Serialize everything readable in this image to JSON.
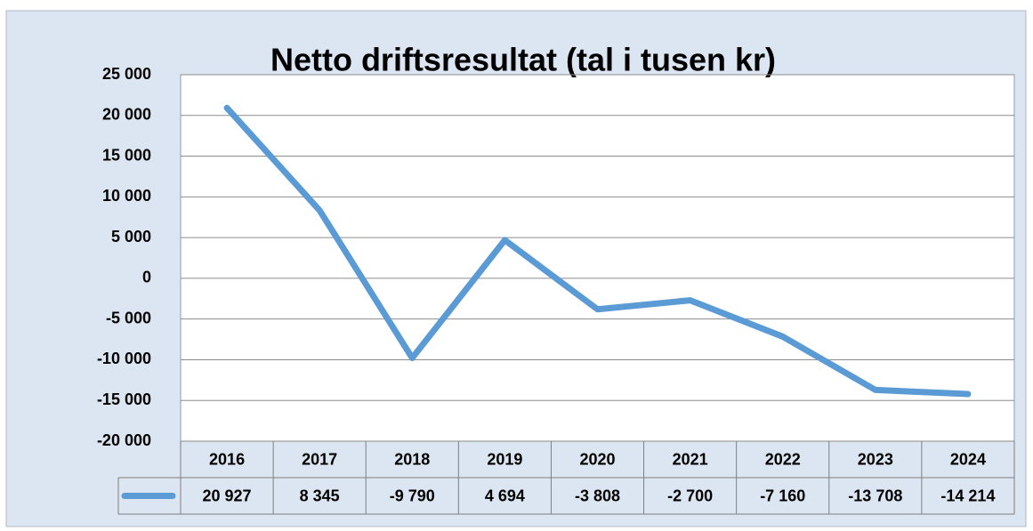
{
  "chart_data": {
    "type": "line",
    "title": "Netto driftsresultat (tal i tusen kr)",
    "categories": [
      "2016",
      "2017",
      "2018",
      "2019",
      "2020",
      "2021",
      "2022",
      "2023",
      "2024"
    ],
    "values": [
      20927,
      8345,
      -9790,
      4694,
      -3808,
      -2700,
      -7160,
      -13708,
      -14214
    ],
    "value_labels": [
      "20 927",
      "8 345",
      "-9 790",
      "4 694",
      "-3 808",
      "-2 700",
      "-7 160",
      "-13 708",
      "-14 214"
    ],
    "color": "#5b9bd5",
    "ylim": [
      -20000,
      25000
    ],
    "yticks": [
      {
        "value": -20000,
        "label": "-20 000"
      },
      {
        "value": -15000,
        "label": "-15 000"
      },
      {
        "value": -10000,
        "label": "-10 000"
      },
      {
        "value": -5000,
        "label": "-5 000"
      },
      0,
      {
        "value": 5000,
        "label": "5 000"
      },
      {
        "value": 10000,
        "label": "10 000"
      },
      {
        "value": 15000,
        "label": "15 000"
      },
      {
        "value": 20000,
        "label": "20 000"
      },
      {
        "value": 25000,
        "label": "25 000"
      }
    ],
    "grid": true
  }
}
